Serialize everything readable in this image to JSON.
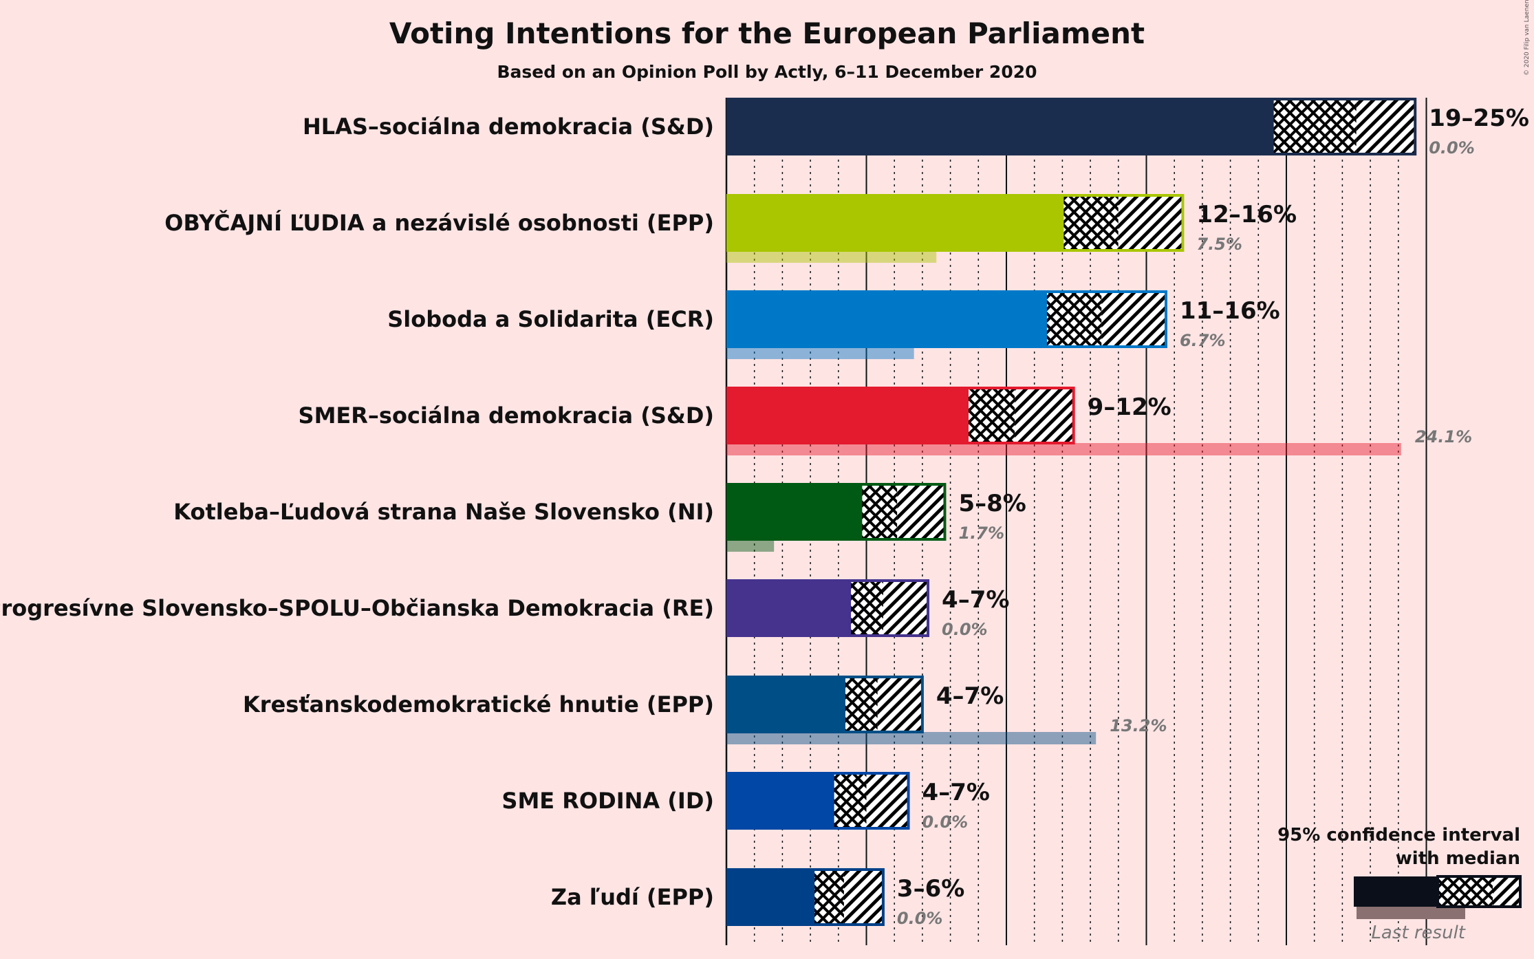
{
  "title": "Voting Intentions for the European Parliament",
  "subtitle": "Based on an Opinion Poll by Actly, 6–11 December 2020",
  "copyright": "© 2020 Filip van Laenen",
  "legend": {
    "ci_line1": "95% confidence interval",
    "ci_line2": "with median",
    "last_result": "Last result"
  },
  "chart_data": {
    "type": "bar",
    "orientation": "horizontal",
    "x_unit": "%",
    "xlim": [
      0,
      25
    ],
    "series": [
      {
        "party": "HLAS–sociálna demokracia (S&D)",
        "color": "#1b2d4e",
        "ci_low": 19.5,
        "median": 22.5,
        "ci_high": 24.6,
        "range_label": "19–25%",
        "last_result": 0.0,
        "last_label": "0.0%"
      },
      {
        "party": "OBYČAJNÍ ĽUDIA a nezávislé osobnosti (EPP)",
        "color": "#a9c600",
        "ci_low": 12.0,
        "median": 14.0,
        "ci_high": 16.3,
        "range_label": "12–16%",
        "last_result": 7.5,
        "last_label": "7.5%"
      },
      {
        "party": "Sloboda a Solidarita (ECR)",
        "color": "#0078c8",
        "ci_low": 11.4,
        "median": 13.4,
        "ci_high": 15.7,
        "range_label": "11–16%",
        "last_result": 6.7,
        "last_label": "6.7%"
      },
      {
        "party": "SMER–sociálna demokracia (S&D)",
        "color": "#e41a2e",
        "ci_low": 8.6,
        "median": 10.3,
        "ci_high": 12.4,
        "range_label": "9–12%",
        "last_result": 24.1,
        "last_label": "24.1%"
      },
      {
        "party": "Kotleba–Ľudová strana Naše Slovensko (NI)",
        "color": "#005a14",
        "ci_low": 4.8,
        "median": 6.1,
        "ci_high": 7.8,
        "range_label": "5–8%",
        "last_result": 1.7,
        "last_label": "1.7%"
      },
      {
        "party": "Progresívne Slovensko–SPOLU–Občianska Demokracia (RE)",
        "color": "#45338e",
        "ci_low": 4.4,
        "median": 5.6,
        "ci_high": 7.2,
        "range_label": "4–7%",
        "last_result": 0.0,
        "last_label": "0.0%"
      },
      {
        "party": "Kresťanskodemokratické hnutie (EPP)",
        "color": "#004e86",
        "ci_low": 4.2,
        "median": 5.4,
        "ci_high": 7.0,
        "range_label": "4–7%",
        "last_result": 13.2,
        "last_label": "13.2%"
      },
      {
        "party": "SME RODINA (ID)",
        "color": "#0047a6",
        "ci_low": 3.8,
        "median": 5.0,
        "ci_high": 6.5,
        "range_label": "4–7%",
        "last_result": 0.0,
        "last_label": "0.0%"
      },
      {
        "party": "Za ľudí (EPP)",
        "color": "#004088",
        "ci_low": 3.1,
        "median": 4.2,
        "ci_high": 5.6,
        "range_label": "3–6%",
        "last_result": 0.0,
        "last_label": "0.0%"
      }
    ]
  }
}
